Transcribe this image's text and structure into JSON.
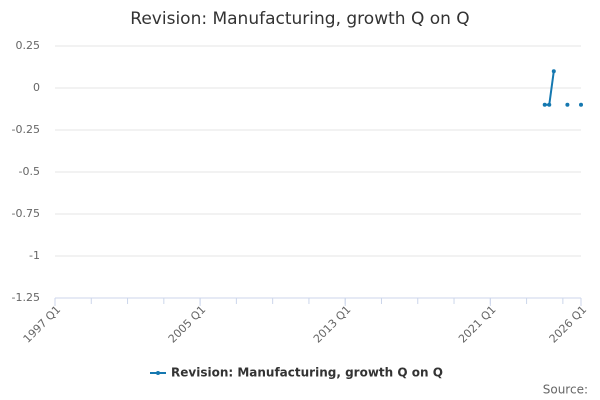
{
  "chart_data": {
    "type": "line",
    "title": "Revision: Manufacturing, growth Q on Q",
    "x": [
      "2024 Q1",
      "2024 Q2",
      "2024 Q3",
      "2024 Q4",
      "2025 Q1",
      "2025 Q2",
      "2025 Q3",
      "2025 Q4",
      "2026 Q1"
    ],
    "series": [
      {
        "name": "Revision: Manufacturing, growth Q on Q",
        "color": "#1578b0",
        "values": [
          -0.1,
          -0.1,
          0.1,
          null,
          null,
          -0.1,
          null,
          null,
          -0.1
        ]
      }
    ],
    "xlim": [
      "1997 Q1",
      "2026 Q1"
    ],
    "xticks": [
      "1997 Q1",
      "2005 Q1",
      "2013 Q1",
      "2021 Q1",
      "2026 Q1"
    ],
    "ylim": [
      -1.25,
      0.25
    ],
    "yticks": [
      0.25,
      0,
      -0.25,
      -0.5,
      -0.75,
      -1,
      -1.25
    ],
    "grid": true,
    "legend": "bottom",
    "source": "Source:"
  }
}
